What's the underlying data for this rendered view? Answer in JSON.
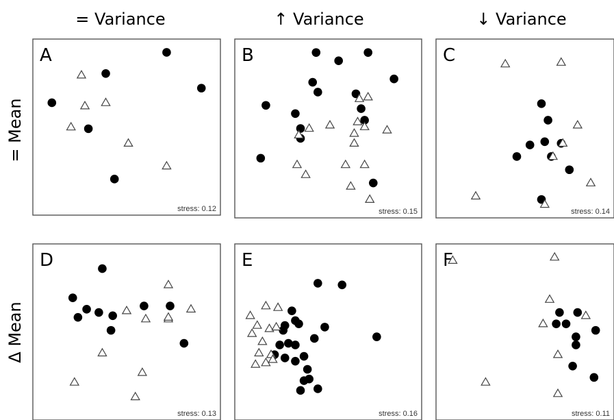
{
  "figure": {
    "column_headers": [
      "= Variance",
      "↑ Variance",
      "↓ Variance"
    ],
    "row_headers": [
      "= Mean",
      "Δ Mean"
    ]
  },
  "legend_colors": {
    "circle": "#000000",
    "triangle_fill": "#ffffff",
    "triangle_stroke": "#444444"
  },
  "chart_data": [
    {
      "type": "scatter",
      "panel": "A",
      "stress_label": "stress: 0.12",
      "xlim": [
        0,
        1
      ],
      "ylim": [
        0,
        1
      ],
      "series": [
        {
          "marker": "circle",
          "points": [
            [
              0.07,
              0.65
            ],
            [
              0.38,
              0.83
            ],
            [
              0.73,
              0.96
            ],
            [
              0.93,
              0.74
            ],
            [
              0.43,
              0.18
            ],
            [
              0.28,
              0.49
            ]
          ]
        },
        {
          "marker": "triangle",
          "points": [
            [
              0.24,
              0.82
            ],
            [
              0.26,
              0.63
            ],
            [
              0.38,
              0.65
            ],
            [
              0.18,
              0.5
            ],
            [
              0.51,
              0.4
            ],
            [
              0.73,
              0.26
            ]
          ]
        }
      ]
    },
    {
      "type": "scatter",
      "panel": "B",
      "stress_label": "stress: 0.15",
      "xlim": [
        0,
        1
      ],
      "ylim": [
        0,
        1
      ],
      "series": [
        {
          "marker": "circle",
          "points": [
            [
              0.43,
              0.96
            ],
            [
              0.56,
              0.91
            ],
            [
              0.73,
              0.96
            ],
            [
              0.88,
              0.8
            ],
            [
              0.41,
              0.78
            ],
            [
              0.44,
              0.72
            ],
            [
              0.14,
              0.64
            ],
            [
              0.31,
              0.59
            ],
            [
              0.34,
              0.5
            ],
            [
              0.34,
              0.44
            ],
            [
              0.66,
              0.71
            ],
            [
              0.69,
              0.62
            ],
            [
              0.71,
              0.55
            ],
            [
              0.11,
              0.32
            ],
            [
              0.76,
              0.17
            ]
          ]
        },
        {
          "marker": "triangle",
          "points": [
            [
              0.68,
              0.68
            ],
            [
              0.73,
              0.69
            ],
            [
              0.67,
              0.54
            ],
            [
              0.71,
              0.51
            ],
            [
              0.51,
              0.52
            ],
            [
              0.39,
              0.5
            ],
            [
              0.65,
              0.47
            ],
            [
              0.33,
              0.46
            ],
            [
              0.84,
              0.49
            ],
            [
              0.65,
              0.41
            ],
            [
              0.32,
              0.28
            ],
            [
              0.6,
              0.28
            ],
            [
              0.71,
              0.28
            ],
            [
              0.37,
              0.22
            ],
            [
              0.63,
              0.15
            ],
            [
              0.74,
              0.07
            ]
          ]
        }
      ]
    },
    {
      "type": "scatter",
      "panel": "C",
      "stress_label": "stress: 0.14",
      "xlim": [
        0,
        1
      ],
      "ylim": [
        0,
        1
      ],
      "series": [
        {
          "marker": "circle",
          "points": [
            [
              0.6,
              0.65
            ],
            [
              0.64,
              0.55
            ],
            [
              0.53,
              0.4
            ],
            [
              0.62,
              0.42
            ],
            [
              0.72,
              0.41
            ],
            [
              0.45,
              0.33
            ],
            [
              0.66,
              0.33
            ],
            [
              0.77,
              0.25
            ],
            [
              0.6,
              0.07
            ]
          ]
        },
        {
          "marker": "triangle",
          "points": [
            [
              0.38,
              0.89
            ],
            [
              0.72,
              0.9
            ],
            [
              0.82,
              0.52
            ],
            [
              0.73,
              0.41
            ],
            [
              0.67,
              0.33
            ],
            [
              0.9,
              0.17
            ],
            [
              0.2,
              0.09
            ],
            [
              0.62,
              0.04
            ]
          ]
        }
      ]
    },
    {
      "type": "scatter",
      "panel": "D",
      "stress_label": "stress: 0.13",
      "xlim": [
        0,
        1
      ],
      "ylim": [
        0,
        1
      ],
      "series": [
        {
          "marker": "circle",
          "points": [
            [
              0.36,
              0.89
            ],
            [
              0.19,
              0.71
            ],
            [
              0.27,
              0.64
            ],
            [
              0.34,
              0.62
            ],
            [
              0.42,
              0.6
            ],
            [
              0.22,
              0.59
            ],
            [
              0.41,
              0.51
            ],
            [
              0.6,
              0.66
            ],
            [
              0.75,
              0.66
            ],
            [
              0.83,
              0.43
            ]
          ]
        },
        {
          "marker": "triangle",
          "points": [
            [
              0.74,
              0.79
            ],
            [
              0.5,
              0.63
            ],
            [
              0.61,
              0.58
            ],
            [
              0.74,
              0.58
            ],
            [
              0.74,
              0.59
            ],
            [
              0.87,
              0.64
            ],
            [
              0.36,
              0.37
            ],
            [
              0.59,
              0.25
            ],
            [
              0.2,
              0.19
            ],
            [
              0.55,
              0.1
            ]
          ]
        }
      ]
    },
    {
      "type": "scatter",
      "panel": "E",
      "stress_label": "stress: 0.16",
      "xlim": [
        0,
        1
      ],
      "ylim": [
        0,
        1
      ],
      "series": [
        {
          "marker": "circle",
          "points": [
            [
              0.44,
              0.8
            ],
            [
              0.58,
              0.79
            ],
            [
              0.29,
              0.63
            ],
            [
              0.31,
              0.57
            ],
            [
              0.25,
              0.54
            ],
            [
              0.33,
              0.55
            ],
            [
              0.24,
              0.51
            ],
            [
              0.48,
              0.53
            ],
            [
              0.42,
              0.46
            ],
            [
              0.22,
              0.42
            ],
            [
              0.27,
              0.43
            ],
            [
              0.31,
              0.42
            ],
            [
              0.19,
              0.36
            ],
            [
              0.36,
              0.35
            ],
            [
              0.25,
              0.34
            ],
            [
              0.31,
              0.32
            ],
            [
              0.38,
              0.27
            ],
            [
              0.78,
              0.47
            ],
            [
              0.36,
              0.2
            ],
            [
              0.34,
              0.14
            ],
            [
              0.44,
              0.15
            ],
            [
              0.39,
              0.21
            ]
          ]
        },
        {
          "marker": "triangle",
          "points": [
            [
              0.05,
              0.6
            ],
            [
              0.14,
              0.66
            ],
            [
              0.21,
              0.65
            ],
            [
              0.09,
              0.54
            ],
            [
              0.16,
              0.52
            ],
            [
              0.06,
              0.49
            ],
            [
              0.12,
              0.44
            ],
            [
              0.2,
              0.53
            ],
            [
              0.1,
              0.37
            ],
            [
              0.17,
              0.36
            ],
            [
              0.08,
              0.3
            ],
            [
              0.14,
              0.31
            ],
            [
              0.18,
              0.33
            ]
          ]
        }
      ]
    },
    {
      "type": "scatter",
      "panel": "F",
      "stress_label": "stress: 0.11",
      "xlim": [
        0,
        1
      ],
      "ylim": [
        0,
        1
      ],
      "series": [
        {
          "marker": "circle",
          "points": [
            [
              0.71,
              0.62
            ],
            [
              0.69,
              0.55
            ],
            [
              0.75,
              0.55
            ],
            [
              0.82,
              0.62
            ],
            [
              0.93,
              0.51
            ],
            [
              0.81,
              0.47
            ],
            [
              0.81,
              0.42
            ],
            [
              0.79,
              0.29
            ],
            [
              0.92,
              0.22
            ]
          ]
        },
        {
          "marker": "triangle",
          "points": [
            [
              0.06,
              0.94
            ],
            [
              0.68,
              0.96
            ],
            [
              0.65,
              0.7
            ],
            [
              0.87,
              0.6
            ],
            [
              0.61,
              0.55
            ],
            [
              0.7,
              0.36
            ],
            [
              0.26,
              0.19
            ],
            [
              0.7,
              0.12
            ]
          ]
        }
      ]
    }
  ]
}
